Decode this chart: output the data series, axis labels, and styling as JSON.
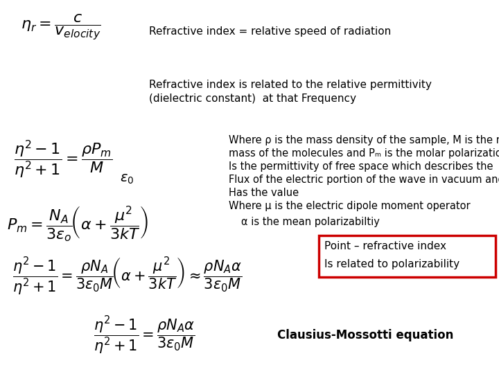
{
  "bg_color": "#ffffff",
  "text_color": "#000000",
  "box_color": "#cc0000",
  "title1": "Refractive index = relative speed of radiation",
  "title2_line1": "Refractive index is related to the relative permittivity",
  "title2_line2": "(dielectric constant)  at that Frequency",
  "desc_line1": "Where ρ is the mass density of the sample, M is the molar",
  "desc_line2": "mass of the molecules and Pₘ is the molar polarization",
  "desc_line3": "Is the permittivity of free space which describes the",
  "desc_line4": "Flux of the electric portion of the wave in vacuum and",
  "desc_line5": "Has the value",
  "desc_line6": "Where μ is the electric dipole moment operator",
  "desc_line7": "α is the mean polarizabiltiy",
  "box_line1": "Point – refractive index",
  "box_line2": "Is related to polarizability",
  "clausius": "Clausius-Mossotti equation"
}
